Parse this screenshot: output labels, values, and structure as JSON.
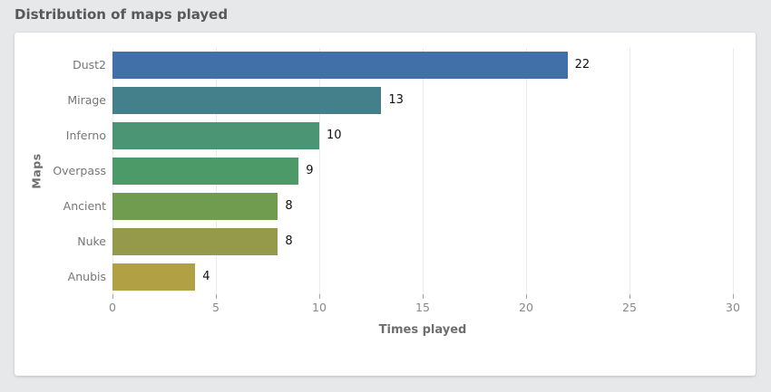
{
  "header": {
    "title": "Distribution of maps played"
  },
  "chart_data": {
    "type": "bar",
    "orientation": "horizontal",
    "title": "Distribution of maps played",
    "categories": [
      "Dust2",
      "Mirage",
      "Inferno",
      "Overpass",
      "Ancient",
      "Nuke",
      "Anubis"
    ],
    "values": [
      22,
      13,
      10,
      9,
      8,
      8,
      4
    ],
    "bar_colors": [
      "#4170a8",
      "#44808c",
      "#4b9574",
      "#4c9a68",
      "#6f9c4f",
      "#95994a",
      "#b2a045"
    ],
    "xlabel": "Times played",
    "ylabel": "Maps",
    "xlim": [
      0,
      30
    ],
    "xticks": [
      0,
      5,
      10,
      15,
      20,
      25,
      30
    ],
    "grid": "vertical",
    "legend": "none",
    "value_labels": true
  },
  "colors": {
    "page_background": "#e7e8ea",
    "card_background": "#ffffff",
    "title_text": "#57585a",
    "axis_title_text": "#6e6e6e",
    "tick_text": "#888888",
    "category_text": "#767676",
    "value_text": "#111111",
    "gridline": "#ebebeb",
    "tick_mark": "#a6a6a6"
  }
}
